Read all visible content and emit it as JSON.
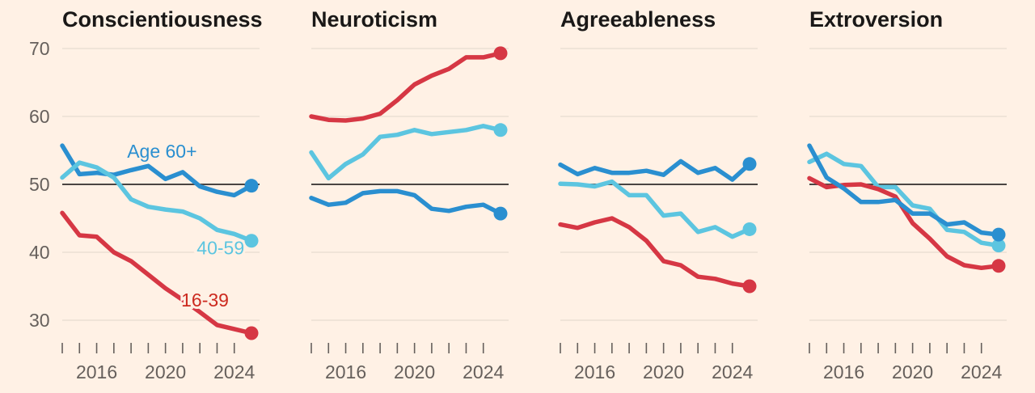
{
  "chart_data": [
    {
      "type": "line",
      "title": "Conscientiousness",
      "x": [
        2014,
        2015,
        2016,
        2017,
        2018,
        2019,
        2020,
        2021,
        2022,
        2023,
        2024,
        2025
      ],
      "ylim": [
        26,
        72
      ],
      "yticks": [
        "30",
        "40",
        "50",
        "60",
        "70"
      ],
      "xticks": [
        "2016",
        "2020",
        "2024"
      ],
      "baseline": 50,
      "grid": true,
      "series": [
        {
          "name": "Age 60+",
          "color": "#2a8fd0",
          "values": [
            55.7,
            51.5,
            51.7,
            51.4,
            52.1,
            52.7,
            50.8,
            51.8,
            49.7,
            48.9,
            48.4,
            49.8
          ]
        },
        {
          "name": "40-59",
          "color": "#5cc5e0",
          "values": [
            51.0,
            53.2,
            52.5,
            51.0,
            47.8,
            46.7,
            46.3,
            46.0,
            45.0,
            43.3,
            42.7,
            41.7
          ]
        },
        {
          "name": "16-39",
          "color": "#d63744",
          "values": [
            45.8,
            42.5,
            42.3,
            40.0,
            38.7,
            36.7,
            34.7,
            33.0,
            31.2,
            29.3,
            28.7,
            28.1
          ]
        }
      ]
    },
    {
      "type": "line",
      "title": "Neuroticism",
      "x": [
        2014,
        2015,
        2016,
        2017,
        2018,
        2019,
        2020,
        2021,
        2022,
        2023,
        2024,
        2025
      ],
      "ylim": [
        26,
        72
      ],
      "xticks": [
        "2016",
        "2020",
        "2024"
      ],
      "baseline": 50,
      "grid": true,
      "series": [
        {
          "color": "#d63744",
          "values": [
            60.0,
            59.5,
            59.4,
            59.7,
            60.4,
            62.4,
            64.7,
            66.0,
            67.0,
            68.7,
            68.7,
            69.3
          ]
        },
        {
          "color": "#5cc5e0",
          "values": [
            54.7,
            50.9,
            53.0,
            54.4,
            57.0,
            57.3,
            58.0,
            57.4,
            57.7,
            58.0,
            58.6,
            58.0
          ]
        },
        {
          "color": "#2a8fd0",
          "values": [
            48.0,
            47.0,
            47.3,
            48.7,
            49.0,
            49.0,
            48.4,
            46.4,
            46.1,
            46.7,
            47.0,
            45.7
          ]
        }
      ]
    },
    {
      "type": "line",
      "title": "Agreeableness",
      "x": [
        2014,
        2015,
        2016,
        2017,
        2018,
        2019,
        2020,
        2021,
        2022,
        2023,
        2024,
        2025
      ],
      "ylim": [
        26,
        72
      ],
      "xticks": [
        "2016",
        "2020",
        "2024"
      ],
      "baseline": 50,
      "grid": true,
      "series": [
        {
          "color": "#2a8fd0",
          "values": [
            52.9,
            51.5,
            52.4,
            51.7,
            51.7,
            52.0,
            51.4,
            53.4,
            51.7,
            52.4,
            50.7,
            53.0
          ]
        },
        {
          "color": "#5cc5e0",
          "values": [
            50.1,
            50.0,
            49.7,
            50.4,
            48.4,
            48.4,
            45.4,
            45.7,
            43.0,
            43.7,
            42.3,
            43.4
          ]
        },
        {
          "color": "#d63744",
          "values": [
            44.1,
            43.6,
            44.4,
            45.0,
            43.7,
            41.7,
            38.7,
            38.1,
            36.4,
            36.1,
            35.4,
            35.0
          ]
        }
      ]
    },
    {
      "type": "line",
      "title": "Extroversion",
      "x": [
        2014,
        2015,
        2016,
        2017,
        2018,
        2019,
        2020,
        2021,
        2022,
        2023,
        2024,
        2025
      ],
      "ylim": [
        26,
        72
      ],
      "xticks": [
        "2016",
        "2020",
        "2024"
      ],
      "baseline": 50,
      "grid": true,
      "series": [
        {
          "color": "#5cc5e0",
          "values": [
            53.3,
            54.5,
            53.0,
            52.7,
            49.6,
            49.6,
            46.9,
            46.4,
            43.3,
            43.0,
            41.4,
            41.0
          ]
        },
        {
          "color": "#d63744",
          "values": [
            50.9,
            49.6,
            49.9,
            50.0,
            49.3,
            48.2,
            44.3,
            42.0,
            39.4,
            38.1,
            37.7,
            38.0
          ]
        },
        {
          "color": "#2a8fd0",
          "values": [
            55.7,
            51.0,
            49.4,
            47.4,
            47.4,
            47.7,
            45.7,
            45.7,
            44.1,
            44.4,
            42.9,
            42.6
          ]
        }
      ]
    }
  ],
  "annotations": [
    {
      "text": "Age 60+",
      "color": "#2a8fd0",
      "panel": 0,
      "at_year": 2019.8,
      "at_value": 53.9
    },
    {
      "text": "40-59",
      "color": "#5cc5e0",
      "panel": 0,
      "at_year": 2023.2,
      "at_value": 39.7
    },
    {
      "text": "16-39",
      "color": "#cc2a1f",
      "panel": 0,
      "at_year": 2022.3,
      "at_value": 32.0
    }
  ]
}
